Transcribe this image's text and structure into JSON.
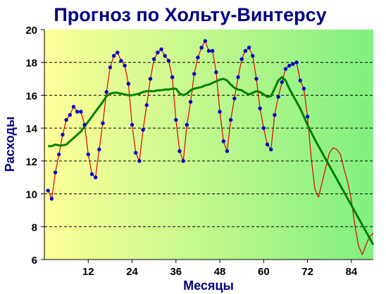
{
  "chart_data": {
    "type": "line",
    "title": "Прогноз по Хольту-Винтерсу",
    "xlabel": "Месяцы",
    "ylabel": "Расходы",
    "xlim": [
      0,
      90
    ],
    "ylim": [
      6,
      20
    ],
    "x_ticks": [
      12,
      24,
      36,
      48,
      60,
      72,
      84
    ],
    "y_ticks": [
      6,
      8,
      10,
      12,
      14,
      16,
      18,
      20
    ],
    "grid": {
      "horizontal": true,
      "style": "dashed"
    },
    "background": {
      "gradient_from": "#ffff99",
      "gradient_to": "#80f080"
    },
    "series": [
      {
        "key": "observed",
        "style": "points",
        "color": "#0000cc",
        "x": [
          1,
          2,
          3,
          4,
          5,
          6,
          7,
          8,
          9,
          10,
          11,
          12,
          13,
          14,
          15,
          16,
          17,
          18,
          19,
          20,
          21,
          22,
          23,
          24,
          25,
          26,
          27,
          28,
          29,
          30,
          31,
          32,
          33,
          34,
          35,
          36,
          37,
          38,
          39,
          40,
          41,
          42,
          43,
          44,
          45,
          46,
          47,
          48,
          49,
          50,
          51,
          52,
          53,
          54,
          55,
          56,
          57,
          58,
          59,
          60,
          61,
          62,
          63,
          64,
          65,
          66,
          67,
          68,
          69,
          70,
          71,
          72
        ],
        "values": [
          10.2,
          9.7,
          11.3,
          12.4,
          13.6,
          14.5,
          14.8,
          15.3,
          15.0,
          15.0,
          14.2,
          12.4,
          11.2,
          11.0,
          12.7,
          14.3,
          16.2,
          17.7,
          18.4,
          18.6,
          18.1,
          17.8,
          16.7,
          14.2,
          12.5,
          12.0,
          13.9,
          15.4,
          17.0,
          18.2,
          18.6,
          18.8,
          18.4,
          18.1,
          17.1,
          14.5,
          12.6,
          12.0,
          14.2,
          15.6,
          17.3,
          18.3,
          18.9,
          19.3,
          18.7,
          18.7,
          17.4,
          15.0,
          13.2,
          12.6,
          14.5,
          15.8,
          17.1,
          18.2,
          18.7,
          18.9,
          18.4,
          17.0,
          15.2,
          14.0,
          13.0,
          12.7,
          14.8,
          15.9,
          16.8,
          17.6,
          17.8,
          17.9,
          18.0,
          16.9,
          16.4,
          14.7
        ]
      },
      {
        "key": "fitted",
        "style": "thin-line",
        "color": "#dd0000",
        "x": [
          1,
          2,
          3,
          4,
          5,
          6,
          7,
          8,
          9,
          10,
          11,
          12,
          13,
          14,
          15,
          16,
          17,
          18,
          19,
          20,
          21,
          22,
          23,
          24,
          25,
          26,
          27,
          28,
          29,
          30,
          31,
          32,
          33,
          34,
          35,
          36,
          37,
          38,
          39,
          40,
          41,
          42,
          43,
          44,
          45,
          46,
          47,
          48,
          49,
          50,
          51,
          52,
          53,
          54,
          55,
          56,
          57,
          58,
          59,
          60,
          61,
          62,
          63,
          64,
          65,
          66,
          67,
          68,
          69,
          70,
          71,
          72,
          73,
          74,
          75,
          76,
          77,
          78,
          79,
          80,
          81,
          82,
          83,
          84,
          85,
          86,
          87,
          88,
          89,
          90
        ],
        "values": [
          10.2,
          9.7,
          11.3,
          12.4,
          13.6,
          14.5,
          14.8,
          15.3,
          15.0,
          15.0,
          14.2,
          12.4,
          11.2,
          11.0,
          12.7,
          14.3,
          16.2,
          17.7,
          18.4,
          18.6,
          18.1,
          17.8,
          16.7,
          14.2,
          12.5,
          12.0,
          13.9,
          15.4,
          17.0,
          18.2,
          18.6,
          18.8,
          18.4,
          18.1,
          17.1,
          14.5,
          12.6,
          12.0,
          14.2,
          15.6,
          17.3,
          18.3,
          18.9,
          19.3,
          18.7,
          18.7,
          17.4,
          15.0,
          13.2,
          12.6,
          14.5,
          15.8,
          17.1,
          18.2,
          18.7,
          18.9,
          18.4,
          17.0,
          15.2,
          14.0,
          13.0,
          12.7,
          14.8,
          15.9,
          16.8,
          17.6,
          17.8,
          17.9,
          18.0,
          16.9,
          16.4,
          14.7,
          12.2,
          10.3,
          9.8,
          10.7,
          11.6,
          12.5,
          12.8,
          12.7,
          12.4,
          11.5,
          10.7,
          9.6,
          8.0,
          6.8,
          6.3,
          6.9,
          7.4,
          7.6
        ]
      },
      {
        "key": "trend",
        "style": "thick-line",
        "color": "#008000",
        "x": [
          1,
          2,
          3,
          4,
          5,
          6,
          7,
          8,
          9,
          10,
          11,
          12,
          13,
          14,
          15,
          16,
          17,
          18,
          19,
          20,
          21,
          22,
          23,
          24,
          25,
          26,
          27,
          28,
          29,
          30,
          31,
          32,
          33,
          34,
          35,
          36,
          37,
          38,
          39,
          40,
          41,
          42,
          43,
          44,
          45,
          46,
          47,
          48,
          49,
          50,
          51,
          52,
          53,
          54,
          55,
          56,
          57,
          58,
          59,
          60,
          61,
          62,
          63,
          64,
          65,
          66,
          67,
          68,
          69,
          70,
          71,
          72,
          73,
          74,
          75,
          76,
          77,
          78,
          79,
          80,
          81,
          82,
          83,
          84,
          85,
          86,
          87,
          88,
          89,
          90
        ],
        "values": [
          12.9,
          12.9,
          13.0,
          12.95,
          12.95,
          13.0,
          13.2,
          13.4,
          13.6,
          13.8,
          14.1,
          14.4,
          14.7,
          15.0,
          15.3,
          15.6,
          15.95,
          16.1,
          16.15,
          16.15,
          16.1,
          16.05,
          16.0,
          16.0,
          16.05,
          16.1,
          16.2,
          16.25,
          16.25,
          16.25,
          16.3,
          16.3,
          16.35,
          16.35,
          16.4,
          16.4,
          16.1,
          16.0,
          16.1,
          16.3,
          16.4,
          16.45,
          16.5,
          16.6,
          16.65,
          16.75,
          16.85,
          16.95,
          17.0,
          16.9,
          16.65,
          16.45,
          16.35,
          16.3,
          16.15,
          16.05,
          16.15,
          16.25,
          16.2,
          16.05,
          15.9,
          15.95,
          16.4,
          16.9,
          17.1,
          16.9,
          16.4,
          16.0,
          15.6,
          15.2,
          14.7,
          14.2,
          13.75,
          13.3,
          12.9,
          12.5,
          12.1,
          11.7,
          11.3,
          10.9,
          10.5,
          10.1,
          9.7,
          9.3,
          8.9,
          8.5,
          8.1,
          7.7,
          7.3,
          6.9
        ]
      }
    ]
  }
}
